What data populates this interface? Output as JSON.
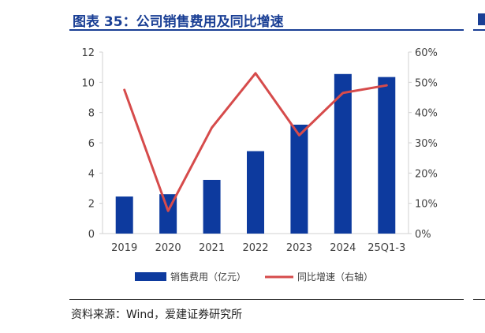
{
  "figure": {
    "title": "图表 35：公司销售费用及同比增速",
    "source": "资料来源：Wind，爱建证券研究所"
  },
  "colors": {
    "title": "#1a3f95",
    "bar": "#0d3a9e",
    "line": "#d64b4b",
    "axis_text": "#404040",
    "axis_line": "#d0d0d0"
  },
  "chart_data": {
    "type": "bar+line",
    "categories": [
      "2019",
      "2020",
      "2021",
      "2022",
      "2023",
      "2024",
      "25Q1-3"
    ],
    "series": [
      {
        "name": "销售费用（亿元）",
        "type": "bar",
        "axis": "left",
        "values": [
          2.45,
          2.6,
          3.55,
          5.45,
          7.2,
          10.55,
          10.35
        ]
      },
      {
        "name": "同比增速（右轴）",
        "type": "line",
        "axis": "right",
        "values": [
          47.5,
          7.5,
          35.0,
          53.0,
          32.5,
          46.5,
          49.0
        ]
      }
    ],
    "y_left": {
      "ylim": [
        0,
        12
      ],
      "ticks": [
        "0",
        "2",
        "4",
        "6",
        "8",
        "10",
        "12"
      ]
    },
    "y_right": {
      "ylim": [
        0,
        60
      ],
      "ticks": [
        "0%",
        "10%",
        "20%",
        "30%",
        "40%",
        "50%",
        "60%"
      ]
    },
    "legend_position": "bottom"
  }
}
